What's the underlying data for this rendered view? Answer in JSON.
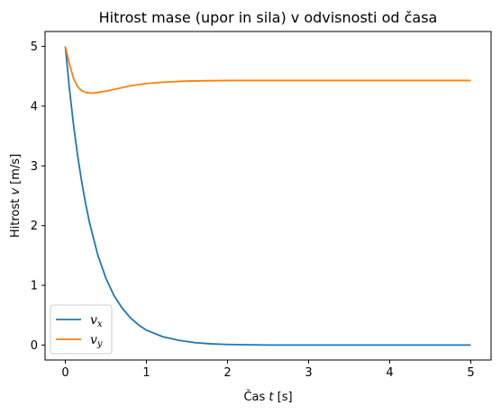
{
  "chart_data": {
    "type": "line",
    "title": "Hitrost mase (upor in sila) v odvisnosti od časa",
    "xlabel": {
      "prefix": "Čas ",
      "var": "t",
      "suffix": " [s]"
    },
    "ylabel": {
      "prefix": "Hitrost ",
      "var": "v",
      "suffix": " [m/s]"
    },
    "xlim": [
      -0.25,
      5.25
    ],
    "ylim": [
      -0.25,
      5.25
    ],
    "xticks": [
      0,
      1,
      2,
      3,
      4,
      5
    ],
    "yticks": [
      0,
      1,
      2,
      3,
      4,
      5
    ],
    "grid": false,
    "legend_position": "lower-left",
    "series": [
      {
        "name": "v",
        "name_sub": "x",
        "color": "#1f77b4",
        "x": [
          0,
          0.05,
          0.1,
          0.15,
          0.2,
          0.25,
          0.3,
          0.4,
          0.5,
          0.6,
          0.7,
          0.8,
          0.9,
          1.0,
          1.2,
          1.4,
          1.6,
          1.8,
          2.0,
          2.5,
          3.0,
          3.5,
          4.0,
          4.5,
          5.0
        ],
        "y": [
          5.0,
          4.3,
          3.7,
          3.19,
          2.75,
          2.37,
          2.04,
          1.51,
          1.12,
          0.83,
          0.62,
          0.46,
          0.34,
          0.25,
          0.14,
          0.08,
          0.04,
          0.02,
          0.01,
          0.0,
          0.0,
          0.0,
          0.0,
          0.0,
          0.0
        ]
      },
      {
        "name": "v",
        "name_sub": "y",
        "color": "#ff7f0e",
        "x": [
          0,
          0.05,
          0.1,
          0.15,
          0.2,
          0.25,
          0.3,
          0.35,
          0.4,
          0.5,
          0.6,
          0.8,
          1.0,
          1.2,
          1.5,
          2.0,
          2.5,
          3.0,
          4.0,
          5.0
        ],
        "y": [
          5.0,
          4.71,
          4.47,
          4.33,
          4.26,
          4.23,
          4.22,
          4.22,
          4.23,
          4.25,
          4.28,
          4.34,
          4.38,
          4.4,
          4.42,
          4.43,
          4.43,
          4.43,
          4.43,
          4.43
        ]
      }
    ]
  }
}
